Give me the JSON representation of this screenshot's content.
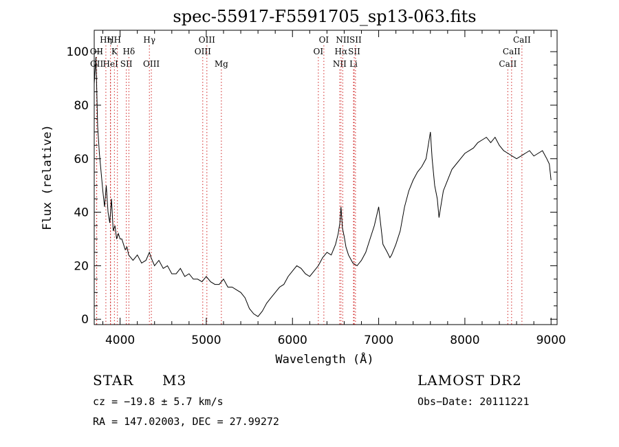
{
  "chart_data": {
    "type": "line",
    "title": "spec-55917-F5591705_sp13-063.fits",
    "xlabel": "Wavelength (Å)",
    "ylabel": "Flux (relative)",
    "xlim": [
      3700,
      9070
    ],
    "ylim": [
      -2,
      108
    ],
    "xticks": [
      4000,
      5000,
      6000,
      7000,
      8000,
      9000
    ],
    "yticks": [
      0,
      20,
      40,
      60,
      80,
      100
    ],
    "grid": false,
    "series": [
      {
        "x": [
          3700,
          3720,
          3740,
          3760,
          3780,
          3800,
          3820,
          3840,
          3860,
          3880,
          3900,
          3920,
          3940,
          3960,
          3980,
          4000,
          4020,
          4040,
          4060,
          4080,
          4100,
          4150,
          4200,
          4250,
          4300,
          4340,
          4360,
          4400,
          4450,
          4500,
          4550,
          4600,
          4650,
          4700,
          4750,
          4800,
          4850,
          4900,
          4950,
          5000,
          5050,
          5100,
          5150,
          5200,
          5250,
          5300,
          5350,
          5400,
          5450,
          5500,
          5550,
          5600,
          5650,
          5700,
          5750,
          5800,
          5850,
          5900,
          5950,
          6000,
          6050,
          6100,
          6150,
          6200,
          6250,
          6300,
          6350,
          6400,
          6450,
          6500,
          6530,
          6550,
          6563,
          6580,
          6600,
          6620,
          6650,
          6700,
          6750,
          6800,
          6850,
          6900,
          6950,
          7000,
          7050,
          7100,
          7130,
          7150,
          7200,
          7250,
          7300,
          7350,
          7400,
          7450,
          7500,
          7550,
          7600,
          7620,
          7650,
          7680,
          7700,
          7720,
          7750,
          7800,
          7850,
          7900,
          7950,
          8000,
          8050,
          8100,
          8150,
          8200,
          8250,
          8300,
          8350,
          8400,
          8450,
          8500,
          8550,
          8600,
          8650,
          8700,
          8750,
          8800,
          8850,
          8900,
          8950,
          8980,
          9000
        ],
        "y": [
          88,
          98,
          72,
          62,
          55,
          48,
          42,
          50,
          40,
          36,
          45,
          33,
          35,
          30,
          32,
          30,
          30,
          28,
          26,
          27,
          24,
          22,
          24,
          21,
          22,
          25,
          23,
          20,
          22,
          19,
          20,
          17,
          17,
          19,
          16,
          17,
          15,
          15,
          14,
          16,
          14,
          13,
          13,
          15,
          12,
          12,
          11,
          10,
          8,
          4,
          2,
          1,
          3,
          6,
          8,
          10,
          12,
          13,
          16,
          18,
          20,
          19,
          17,
          16,
          18,
          20,
          23,
          25,
          24,
          28,
          32,
          36,
          42,
          34,
          31,
          27,
          24,
          21,
          20,
          22,
          25,
          30,
          35,
          42,
          28,
          25,
          23,
          24,
          28,
          33,
          42,
          48,
          52,
          55,
          57,
          60,
          70,
          60,
          50,
          45,
          38,
          42,
          48,
          52,
          56,
          58,
          60,
          62,
          63,
          64,
          66,
          67,
          68,
          66,
          68,
          65,
          63,
          62,
          61,
          60,
          61,
          62,
          63,
          61,
          62,
          63,
          60,
          58,
          52
        ]
      }
    ],
    "lines": [
      {
        "name": "OII",
        "x": 3727,
        "row": 1
      },
      {
        "name": "OII",
        "x": 3729,
        "row": 2
      },
      {
        "name": "Hη",
        "x": 3835,
        "row": 0
      },
      {
        "name": "H",
        "x": 3889,
        "row": 0
      },
      {
        "name": "HeI",
        "x": 3889,
        "row": 2
      },
      {
        "name": "K",
        "x": 3934,
        "row": 1
      },
      {
        "name": "H",
        "x": 3969,
        "row": 0
      },
      {
        "name": "SII",
        "x": 4072,
        "row": 2
      },
      {
        "name": "Hδ",
        "x": 4102,
        "row": 1
      },
      {
        "name": "Hγ",
        "x": 4340,
        "row": 0
      },
      {
        "name": "OIII",
        "x": 4363,
        "row": 2
      },
      {
        "name": "OIII",
        "x": 4959,
        "row": 1
      },
      {
        "name": "OIII",
        "x": 5007,
        "row": 0
      },
      {
        "name": "Mg",
        "x": 5175,
        "row": 2
      },
      {
        "name": "OI",
        "x": 6300,
        "row": 1
      },
      {
        "name": "OI",
        "x": 6364,
        "row": 0
      },
      {
        "name": "NII",
        "x": 6548,
        "row": 2
      },
      {
        "name": "Hα",
        "x": 6563,
        "row": 1
      },
      {
        "name": "NII",
        "x": 6583,
        "row": 0
      },
      {
        "name": "SII",
        "x": 6716,
        "row": 1
      },
      {
        "name": "SII",
        "x": 6731,
        "row": 0
      },
      {
        "name": "Li",
        "x": 6708,
        "row": 2
      },
      {
        "name": "CaII",
        "x": 8498,
        "row": 2
      },
      {
        "name": "CaII",
        "x": 8542,
        "row": 1
      },
      {
        "name": "CaII",
        "x": 8662,
        "row": 0
      }
    ]
  },
  "info": {
    "object_type": "STAR",
    "subclass": "M3",
    "survey": "LAMOST DR2",
    "cz": "cz = −19.8 ± 5.7 km/s",
    "obs_date": "Obs−Date: 20111221",
    "coords": "RA = 147.02003, DEC =  27.99272"
  }
}
